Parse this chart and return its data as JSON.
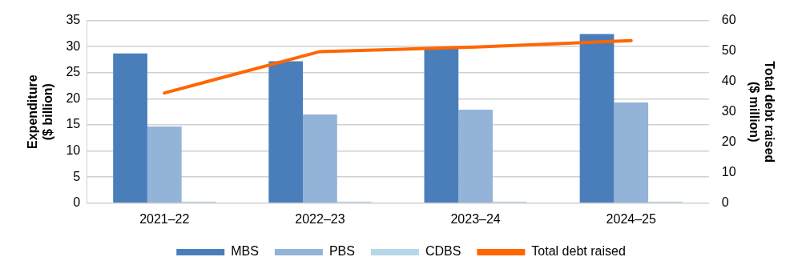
{
  "chart_data": {
    "type": "bar",
    "categories": [
      "2021–22",
      "2022–23",
      "2023–24",
      "2024–25"
    ],
    "series": [
      {
        "name": "MBS",
        "color": "#4a7ebb",
        "values": [
          28.7,
          27.2,
          29.8,
          32.4
        ]
      },
      {
        "name": "PBS",
        "color": "#93b3d9",
        "values": [
          14.7,
          17.0,
          17.9,
          19.3
        ]
      },
      {
        "name": "CDBS",
        "color": "#b6d7e8",
        "values": [
          0.3,
          0.3,
          0.3,
          0.3
        ]
      },
      {
        "name": "Total debt raised",
        "type": "line",
        "axis": "y2",
        "color": "#ff6600",
        "values": [
          36.2,
          49.8,
          51.3,
          53.4
        ]
      }
    ],
    "ylabel": "Expenditure\n($ billion)",
    "y2label": "Total debt raised\n($ million)",
    "ylim": [
      0,
      35
    ],
    "yticks": [
      0,
      5,
      10,
      15,
      20,
      25,
      30,
      35
    ],
    "y2lim": [
      0,
      60
    ],
    "y2ticks": [
      0,
      10,
      20,
      30,
      40,
      50,
      60
    ],
    "grid": "y",
    "legend": "bottom",
    "marker": "none"
  }
}
